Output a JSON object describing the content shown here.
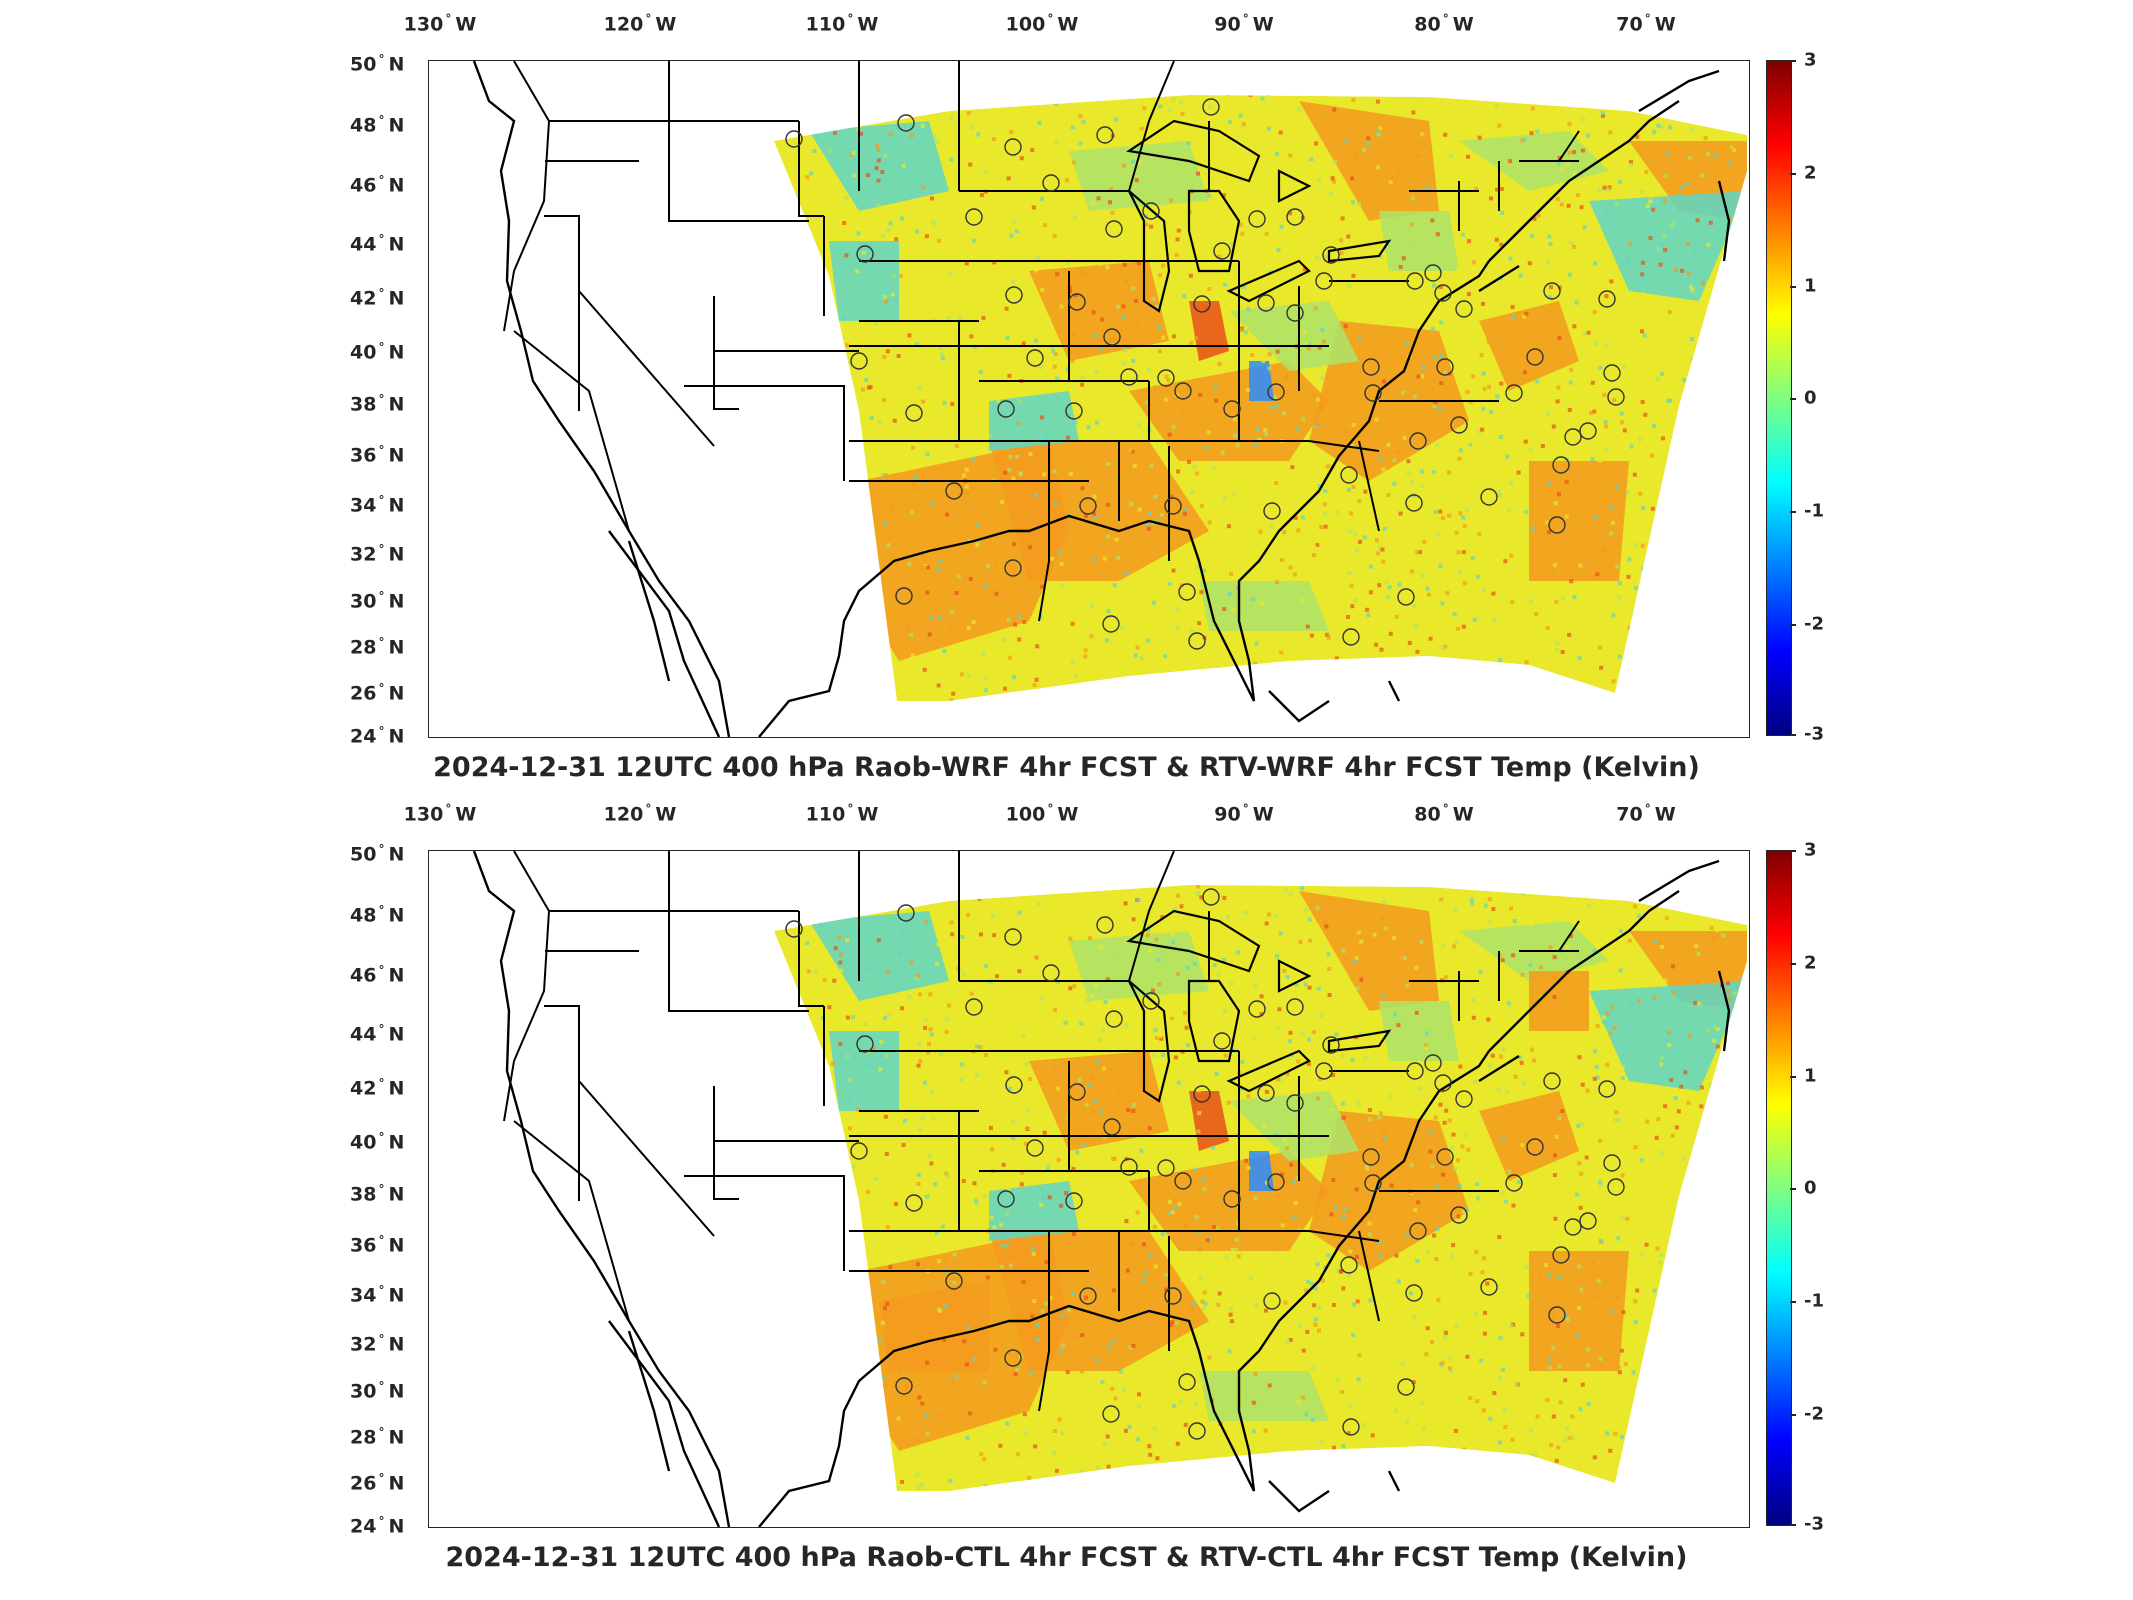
{
  "panels": [
    {
      "id": "top",
      "title": "2024-12-31 12UTC 400 hPa Raob-WRF 4hr FCST & RTV-WRF 4hr FCST Temp (Kelvin)"
    },
    {
      "id": "bottom",
      "title": "2024-12-31 12UTC 400 hPa Raob-CTL 4hr FCST & RTV-CTL 4hr FCST Temp (Kelvin)"
    }
  ],
  "lon_ticks": [
    "130",
    "120",
    "110",
    "100",
    "90",
    "80",
    "70"
  ],
  "lon_suffix": "W",
  "lat_ticks": [
    "50",
    "48",
    "46",
    "44",
    "42",
    "40",
    "38",
    "36",
    "34",
    "32",
    "30",
    "28",
    "26",
    "24"
  ],
  "lat_suffix": "N",
  "colorbar": {
    "ticks": [
      "3",
      "2",
      "1",
      "0",
      "-1",
      "-2",
      "-3"
    ],
    "range": [
      -3,
      3
    ],
    "colormap": "jet"
  },
  "station_marker": "circle",
  "colors": {
    "orange": "#f39a1e",
    "yellow": "#e9e82a",
    "green": "#aee36a",
    "cyan": "#5fd6c6",
    "blue": "#2a8cff",
    "red": "#e8501a",
    "border": "#000000"
  }
}
